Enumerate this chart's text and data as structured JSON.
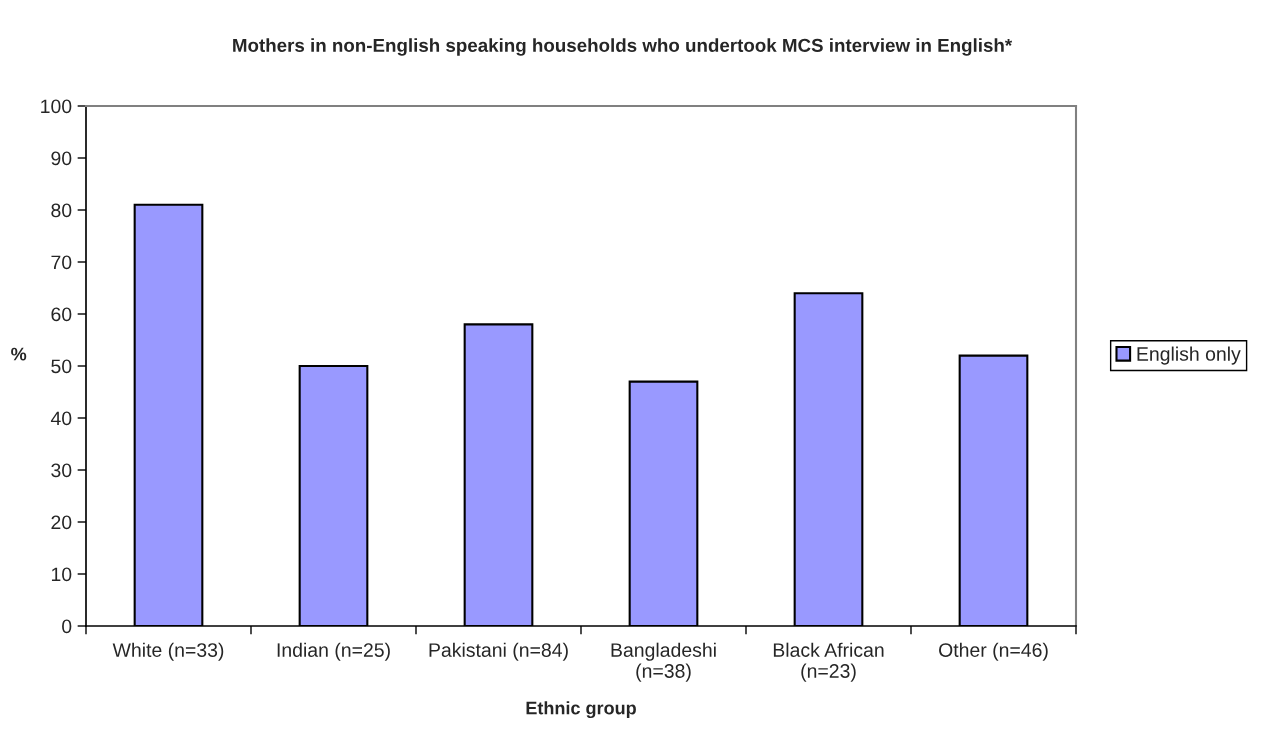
{
  "chart_data": {
    "type": "bar",
    "title": "Mothers in non-English speaking households who undertook MCS interview in English*",
    "xlabel": "Ethnic group",
    "ylabel": "%",
    "categories": [
      "White (n=33)",
      "Indian (n=25)",
      "Pakistani (n=84)",
      "Bangladeshi\n(n=38)",
      "Black African\n(n=23)",
      "Other (n=46)"
    ],
    "series": [
      {
        "name": "English only",
        "color": "#9999ff",
        "values": [
          81,
          50,
          58,
          47,
          64,
          52
        ]
      }
    ],
    "ylim": [
      0,
      100
    ],
    "yticks": [
      0,
      10,
      20,
      30,
      40,
      50,
      60,
      70,
      80,
      90,
      100
    ],
    "legend": "right"
  }
}
